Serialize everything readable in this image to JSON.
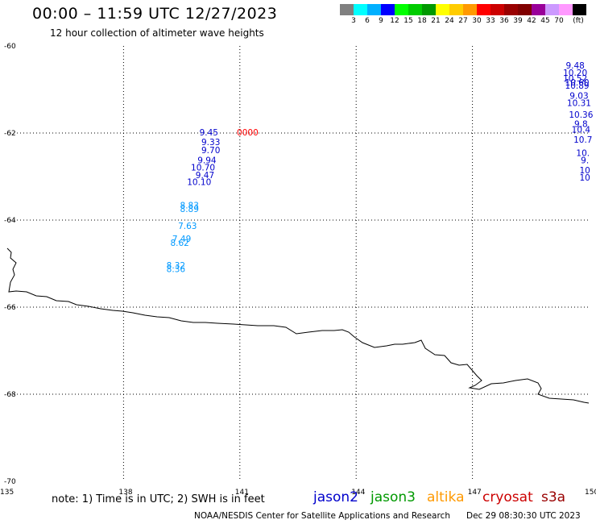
{
  "header": {
    "title": "00:00 – 11:59 UTC 12/27/2023",
    "subtitle": "12 hour collection of altimeter wave heights"
  },
  "colorbar": {
    "swatches": [
      "#808080",
      "#00ffff",
      "#00b0ff",
      "#0000ff",
      "#00ff00",
      "#00cc00",
      "#009900",
      "#ffff00",
      "#ffcc00",
      "#ff9900",
      "#ff0000",
      "#cc0000",
      "#990000",
      "#800000",
      "#990099",
      "#cc99ff",
      "#ff99ff",
      "#000000"
    ],
    "labels": [
      "3",
      "6",
      "9",
      "12",
      "15",
      "18",
      "21",
      "24",
      "27",
      "30",
      "33",
      "36",
      "39",
      "42",
      "45",
      "70"
    ],
    "unit": "(ft)"
  },
  "map": {
    "lat_ticks": [
      "-60",
      "-62",
      "-64",
      "-66",
      "-68",
      "-70"
    ],
    "lon_ticks": [
      "135",
      "138",
      "141",
      "144",
      "147",
      "150"
    ],
    "lat_range": [
      -70,
      -60
    ],
    "lon_range": [
      135,
      150
    ],
    "grid": "dotted"
  },
  "observations": [
    {
      "label": "9.45",
      "lon": 140.2,
      "lat": -61.98,
      "color": "#0000cc"
    },
    {
      "label": "9.33",
      "lon": 140.25,
      "lat": -62.2,
      "color": "#0000cc"
    },
    {
      "label": "9.70",
      "lon": 140.25,
      "lat": -62.39,
      "color": "#0000cc"
    },
    {
      "label": "9.94",
      "lon": 140.15,
      "lat": -62.62,
      "color": "#0000cc"
    },
    {
      "label": "10.70",
      "lon": 140.05,
      "lat": -62.79,
      "color": "#0000cc"
    },
    {
      "label": "9.47",
      "lon": 140.1,
      "lat": -62.96,
      "color": "#0000cc"
    },
    {
      "label": "10.10",
      "lon": 139.95,
      "lat": -63.12,
      "color": "#0000cc"
    },
    {
      "label": "8.83",
      "lon": 139.7,
      "lat": -63.66,
      "color": "#0099ff"
    },
    {
      "label": "8.89",
      "lon": 139.7,
      "lat": -63.74,
      "color": "#0099ff"
    },
    {
      "label": "7.63",
      "lon": 139.65,
      "lat": -64.13,
      "color": "#0099ff"
    },
    {
      "label": "7.49",
      "lon": 139.5,
      "lat": -64.43,
      "color": "#0099ff"
    },
    {
      "label": "8.62",
      "lon": 139.45,
      "lat": -64.52,
      "color": "#0099ff"
    },
    {
      "label": "8.32",
      "lon": 139.35,
      "lat": -65.04,
      "color": "#0099ff"
    },
    {
      "label": "8.36",
      "lon": 139.35,
      "lat": -65.12,
      "color": "#0099ff"
    },
    {
      "label": "0000",
      "lon": 141.2,
      "lat": -61.98,
      "color": "#ff0000"
    },
    {
      "label": "9.48",
      "lon": 149.65,
      "lat": -60.44,
      "color": "#0000cc"
    },
    {
      "label": "10.20",
      "lon": 149.65,
      "lat": -60.61,
      "color": "#0000cc"
    },
    {
      "label": "10.52",
      "lon": 149.65,
      "lat": -60.74,
      "color": "#0000cc"
    },
    {
      "label": "10.60",
      "lon": 149.7,
      "lat": -60.83,
      "color": "#0000cc"
    },
    {
      "label": "10.89",
      "lon": 149.7,
      "lat": -60.91,
      "color": "#0000cc"
    },
    {
      "label": "9.03",
      "lon": 149.75,
      "lat": -61.14,
      "color": "#0000cc"
    },
    {
      "label": "10.31",
      "lon": 149.75,
      "lat": -61.31,
      "color": "#0000cc"
    },
    {
      "label": "10.36",
      "lon": 149.8,
      "lat": -61.57,
      "color": "#0000cc"
    },
    {
      "label": "9.8",
      "lon": 149.8,
      "lat": -61.79,
      "color": "#0000cc"
    },
    {
      "label": "10.4",
      "lon": 149.8,
      "lat": -61.92,
      "color": "#0000cc"
    },
    {
      "label": "10.7",
      "lon": 149.85,
      "lat": -62.15,
      "color": "#0000cc"
    },
    {
      "label": "10.",
      "lon": 149.85,
      "lat": -62.45,
      "color": "#0000cc"
    },
    {
      "label": "9.",
      "lon": 149.9,
      "lat": -62.62,
      "color": "#0000cc"
    },
    {
      "label": "10",
      "lon": 149.9,
      "lat": -62.85,
      "color": "#0000cc"
    },
    {
      "label": "10",
      "lon": 149.9,
      "lat": -63.02,
      "color": "#0000cc"
    }
  ],
  "footer": {
    "note": "note: 1) Time is in UTC; 2) SWH is in feet",
    "missions": [
      {
        "name": "jason2",
        "color": "#0000cc"
      },
      {
        "name": "jason3",
        "color": "#009900"
      },
      {
        "name": "altika",
        "color": "#ff9900"
      },
      {
        "name": "cryosat",
        "color": "#cc0000"
      },
      {
        "name": "s3a",
        "color": "#990000"
      }
    ],
    "credit": "NOAA/NESDIS Center for Satellite Applications and Research",
    "timestamp": "Dec 29 08:30:30 UTC 2023"
  }
}
